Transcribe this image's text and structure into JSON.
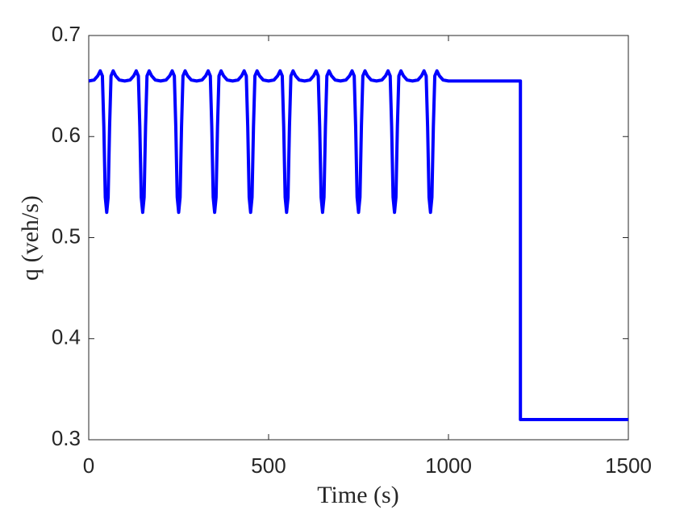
{
  "chart_data": {
    "type": "line",
    "xlabel": "Time (s)",
    "ylabel": "q (veh/s)",
    "x": [
      0,
      15,
      25,
      32,
      38,
      42,
      46,
      50,
      54,
      58,
      62,
      68,
      75,
      85,
      100,
      115,
      125,
      132,
      138,
      142,
      146,
      150,
      154,
      158,
      162,
      168,
      175,
      185,
      200,
      215,
      225,
      232,
      238,
      242,
      246,
      250,
      254,
      258,
      262,
      268,
      275,
      285,
      300,
      315,
      325,
      332,
      338,
      342,
      346,
      350,
      354,
      358,
      362,
      368,
      375,
      385,
      400,
      415,
      425,
      432,
      438,
      442,
      446,
      450,
      454,
      458,
      462,
      468,
      475,
      485,
      500,
      515,
      525,
      532,
      538,
      542,
      546,
      550,
      554,
      558,
      562,
      568,
      575,
      585,
      600,
      615,
      625,
      632,
      638,
      642,
      646,
      650,
      654,
      658,
      662,
      668,
      675,
      685,
      700,
      715,
      725,
      732,
      738,
      742,
      746,
      750,
      754,
      758,
      762,
      768,
      775,
      785,
      800,
      815,
      825,
      832,
      838,
      842,
      846,
      850,
      854,
      858,
      862,
      868,
      875,
      885,
      900,
      915,
      925,
      932,
      938,
      942,
      946,
      950,
      954,
      958,
      962,
      968,
      975,
      985,
      1000,
      1200,
      1200,
      1500
    ],
    "series": [
      {
        "name": "q",
        "color": "#0000ff",
        "values": [
          0.655,
          0.656,
          0.66,
          0.665,
          0.66,
          0.61,
          0.54,
          0.525,
          0.54,
          0.61,
          0.66,
          0.665,
          0.66,
          0.656,
          0.655,
          0.656,
          0.66,
          0.665,
          0.66,
          0.61,
          0.54,
          0.525,
          0.54,
          0.61,
          0.66,
          0.665,
          0.66,
          0.656,
          0.655,
          0.656,
          0.66,
          0.665,
          0.66,
          0.61,
          0.54,
          0.525,
          0.54,
          0.61,
          0.66,
          0.665,
          0.66,
          0.656,
          0.655,
          0.656,
          0.66,
          0.665,
          0.66,
          0.61,
          0.54,
          0.525,
          0.54,
          0.61,
          0.66,
          0.665,
          0.66,
          0.656,
          0.655,
          0.656,
          0.66,
          0.665,
          0.66,
          0.61,
          0.54,
          0.525,
          0.54,
          0.61,
          0.66,
          0.665,
          0.66,
          0.656,
          0.655,
          0.656,
          0.66,
          0.665,
          0.66,
          0.61,
          0.54,
          0.525,
          0.54,
          0.61,
          0.66,
          0.665,
          0.66,
          0.656,
          0.655,
          0.656,
          0.66,
          0.665,
          0.66,
          0.61,
          0.54,
          0.525,
          0.54,
          0.61,
          0.66,
          0.665,
          0.66,
          0.656,
          0.655,
          0.656,
          0.66,
          0.665,
          0.66,
          0.61,
          0.54,
          0.525,
          0.54,
          0.61,
          0.66,
          0.665,
          0.66,
          0.656,
          0.655,
          0.656,
          0.66,
          0.665,
          0.66,
          0.61,
          0.54,
          0.525,
          0.54,
          0.61,
          0.66,
          0.665,
          0.66,
          0.656,
          0.655,
          0.656,
          0.66,
          0.665,
          0.66,
          0.61,
          0.54,
          0.525,
          0.54,
          0.61,
          0.66,
          0.665,
          0.66,
          0.656,
          0.655,
          0.655,
          0.32,
          0.32
        ]
      }
    ],
    "xlim": [
      0,
      1500
    ],
    "xticks": [
      0,
      500,
      1000,
      1500
    ],
    "ylim": [
      0.3,
      0.7
    ],
    "yticks": [
      0.3,
      0.4,
      0.5,
      0.6,
      0.7
    ],
    "grid": false
  }
}
